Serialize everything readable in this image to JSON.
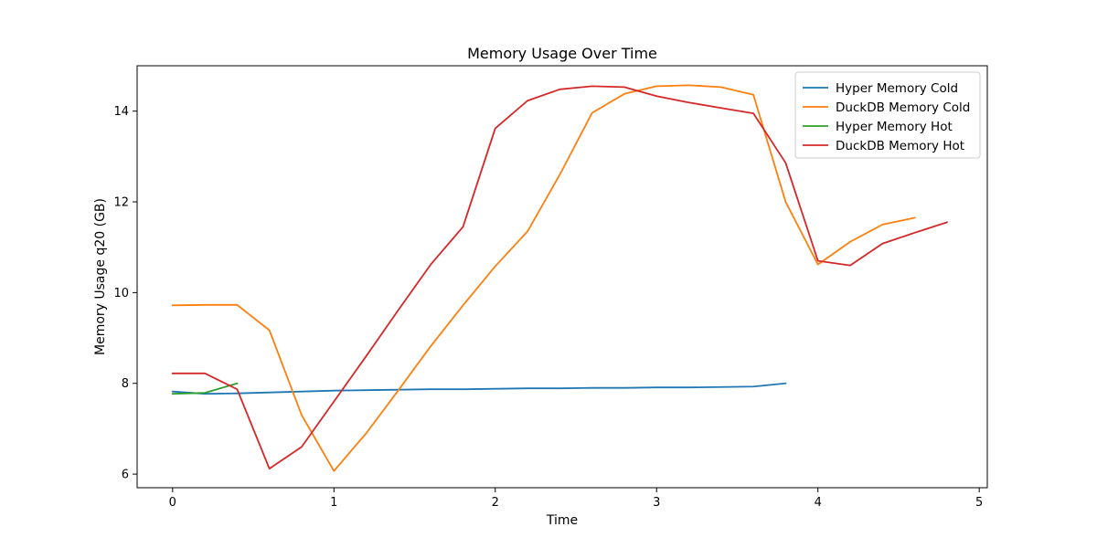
{
  "chart_data": {
    "type": "line",
    "title": "Memory Usage Over Time",
    "xlabel": "Time",
    "ylabel": "Memory Usage q20 (GB)",
    "xlim": [
      -0.22,
      5.05
    ],
    "ylim": [
      5.7,
      15.0
    ],
    "xticks": [
      0,
      1,
      2,
      3,
      4,
      5
    ],
    "xtick_labels": [
      "0",
      "1",
      "2",
      "3",
      "4",
      "5"
    ],
    "yticks": [
      6,
      8,
      10,
      12,
      14
    ],
    "ytick_labels": [
      "6",
      "8",
      "10",
      "12",
      "14"
    ],
    "grid": false,
    "legend_position": "upper right",
    "series": [
      {
        "name": "Hyper Memory Cold",
        "color": "#1f77b4",
        "x": [
          0,
          0.2,
          0.4,
          0.6,
          0.8,
          1.0,
          1.2,
          1.4,
          1.6,
          1.8,
          2.0,
          2.2,
          2.4,
          2.6,
          2.8,
          3.0,
          3.2,
          3.4,
          3.6,
          3.8
        ],
        "y": [
          7.82,
          7.77,
          7.78,
          7.8,
          7.82,
          7.84,
          7.85,
          7.86,
          7.87,
          7.87,
          7.88,
          7.89,
          7.89,
          7.9,
          7.9,
          7.91,
          7.91,
          7.92,
          7.93,
          8.0
        ]
      },
      {
        "name": "DuckDB Memory Cold",
        "color": "#ff7f0e",
        "x": [
          0,
          0.2,
          0.4,
          0.6,
          0.8,
          1.0,
          1.2,
          1.4,
          1.6,
          1.8,
          2.0,
          2.2,
          2.4,
          2.6,
          2.8,
          3.0,
          3.2,
          3.4,
          3.6,
          3.8,
          4.0,
          4.2,
          4.4,
          4.6
        ],
        "y": [
          9.72,
          9.73,
          9.73,
          9.17,
          7.3,
          6.07,
          6.9,
          7.85,
          8.82,
          9.72,
          10.58,
          11.35,
          12.6,
          13.96,
          14.38,
          14.55,
          14.57,
          14.53,
          14.36,
          12.0,
          10.62,
          11.12,
          11.5,
          11.65
        ]
      },
      {
        "name": "Hyper Memory Hot",
        "color": "#2ca02c",
        "x": [
          0,
          0.2,
          0.4
        ],
        "y": [
          7.77,
          7.79,
          8.0
        ]
      },
      {
        "name": "DuckDB Memory Hot",
        "color": "#d62728",
        "x": [
          0,
          0.2,
          0.4,
          0.6,
          0.8,
          1.0,
          1.2,
          1.4,
          1.6,
          1.8,
          2.0,
          2.2,
          2.4,
          2.6,
          2.8,
          3.0,
          3.2,
          3.4,
          3.6,
          3.8,
          4.0,
          4.2,
          4.4,
          4.6,
          4.8
        ],
        "y": [
          8.22,
          8.22,
          7.87,
          6.12,
          6.6,
          7.6,
          8.6,
          9.62,
          10.62,
          11.45,
          13.62,
          14.23,
          14.48,
          14.55,
          14.53,
          14.33,
          14.19,
          14.07,
          13.95,
          12.86,
          10.7,
          10.6,
          11.08,
          11.32,
          11.55
        ]
      }
    ]
  }
}
